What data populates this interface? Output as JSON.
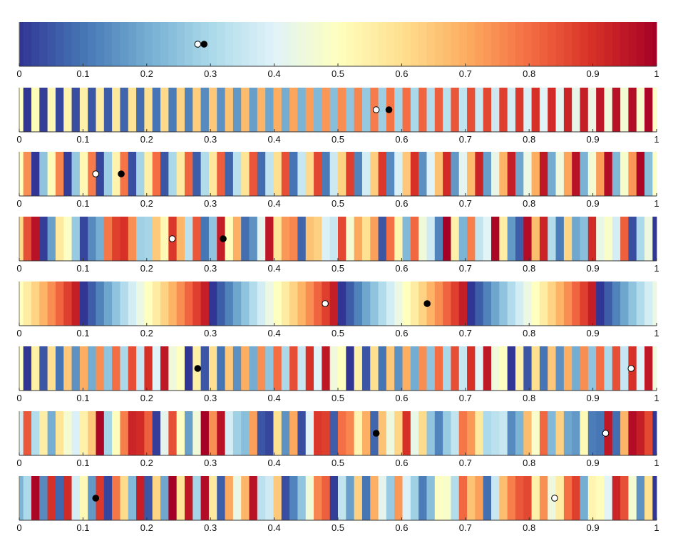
{
  "chart_data": {
    "type": "heatmap",
    "title": "",
    "colormap": {
      "name": "RdYlBu_r",
      "stops": [
        "#313695",
        "#4575b4",
        "#74add1",
        "#abd9e9",
        "#e0f3f8",
        "#ffffbf",
        "#fee090",
        "#fdae61",
        "#f46d43",
        "#d73027",
        "#a50026"
      ]
    },
    "n_colors": 80,
    "xlim": [
      0,
      1
    ],
    "xticks": [
      0,
      0.1,
      0.2,
      0.3,
      0.4,
      0.5,
      0.6,
      0.7,
      0.8,
      0.9,
      1
    ],
    "xtick_labels": [
      "0",
      "0.1",
      "0.2",
      "0.3",
      "0.4",
      "0.5",
      "0.6",
      "0.7",
      "0.8",
      "0.9",
      "1"
    ],
    "strips": [
      {
        "ordering": "sequential",
        "markers": [
          {
            "x": 0.28,
            "fill": "white"
          },
          {
            "x": 0.29,
            "fill": "black"
          }
        ]
      },
      {
        "ordering": "interleave",
        "groups": [
          0.5,
          0.0
        ],
        "markers": [
          {
            "x": 0.56,
            "fill": "white"
          },
          {
            "x": 0.58,
            "fill": "black"
          }
        ]
      },
      {
        "ordering": "interleave",
        "groups": [
          0.5,
          0.75,
          0.0,
          0.25
        ],
        "markers": [
          {
            "x": 0.12,
            "fill": "white"
          },
          {
            "x": 0.16,
            "fill": "black"
          }
        ]
      },
      {
        "ordering": "shuffle",
        "seed": 11,
        "markers": [
          {
            "x": 0.24,
            "fill": "white"
          },
          {
            "x": 0.32,
            "fill": "black"
          }
        ]
      },
      {
        "ordering": "sawtooth",
        "period": 16,
        "offset": 0.5,
        "markers": [
          {
            "x": 0.48,
            "fill": "white"
          },
          {
            "x": 0.64,
            "fill": "black"
          }
        ]
      },
      {
        "ordering": "interleave-cycle",
        "groups": [
          0.5,
          0.0
        ],
        "cycle": 10,
        "markers": [
          {
            "x": 0.28,
            "fill": "black"
          },
          {
            "x": 0.96,
            "fill": "white"
          }
        ]
      },
      {
        "ordering": "shuffle",
        "seed": 37,
        "markers": [
          {
            "x": 0.56,
            "fill": "black"
          },
          {
            "x": 0.92,
            "fill": "white"
          }
        ]
      },
      {
        "ordering": "shuffle",
        "seed": 73,
        "markers": [
          {
            "x": 0.12,
            "fill": "black"
          },
          {
            "x": 0.84,
            "fill": "white"
          }
        ]
      }
    ]
  }
}
